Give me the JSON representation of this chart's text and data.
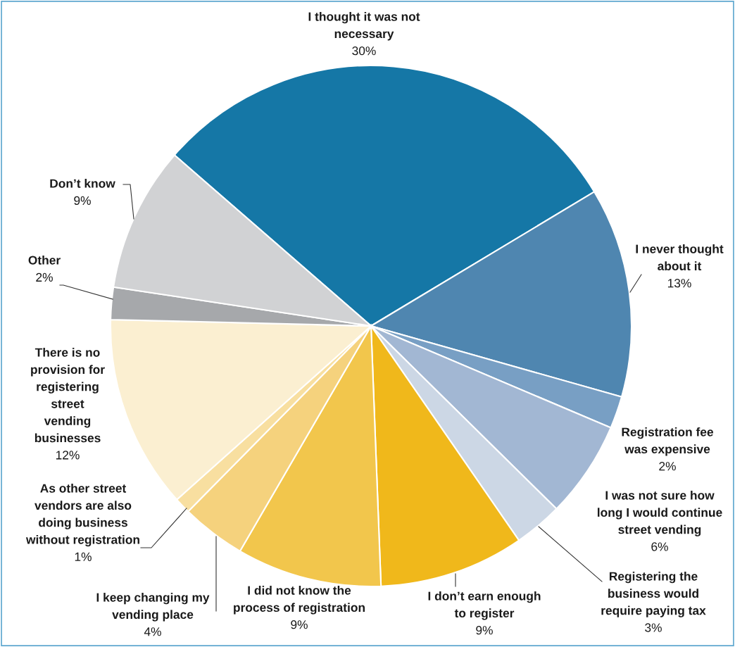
{
  "chart_data": {
    "type": "pie",
    "categories": [
      "I thought it was not\nnecessary",
      "I never thought\nabout it",
      "Registration fee\nwas expensive",
      "I was not sure how\nlong I would continue\nstreet vending",
      "Registering the\nbusiness would\nrequire paying tax",
      "I don’t earn enough\nto register",
      "I did not know the\nprocess of registration",
      "I keep changing my\nvending place",
      "As other street\nvendors are also\ndoing business\nwithout registration",
      "There is no\nprovision for\nregistering\nstreet\nvending\nbusinesses",
      "Other",
      "Don’t know"
    ],
    "values": [
      30,
      13,
      2,
      6,
      3,
      9,
      9,
      4,
      1,
      12,
      2,
      9
    ],
    "colors": [
      "#1577a6",
      "#4f86b0",
      "#789fc4",
      "#a2b7d3",
      "#ccd7e5",
      "#f0b81b",
      "#f2c64c",
      "#f5d27d",
      "#f8dfa0",
      "#fbefd1",
      "#a6a8ab",
      "#d1d2d4"
    ],
    "value_labels": [
      "30%",
      "13%",
      "2%",
      "6%",
      "3%",
      "9%",
      "9%",
      "4%",
      "1%",
      "12%",
      "2%",
      "9%"
    ],
    "legend": false
  }
}
